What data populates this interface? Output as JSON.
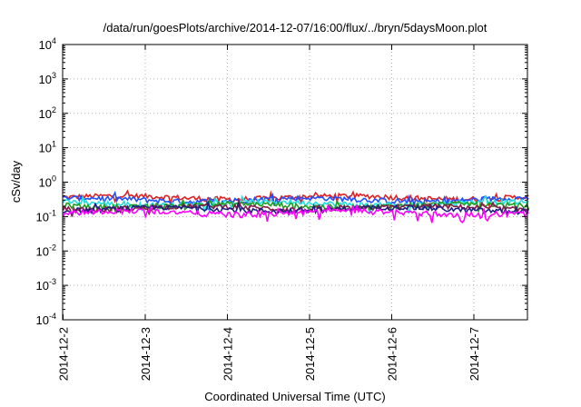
{
  "chart_data": {
    "type": "line",
    "title": "/data/run/goesPlots/archive/2014-12-07/16:00/flux/../bryn/5daysMoon.plot",
    "xlabel": "Coordinated Universal Time (UTC)",
    "ylabel": "cSv/day",
    "y_scale": "log",
    "ylim": [
      0.0001,
      10000
    ],
    "xlim": [
      "2014-12-02",
      "2014-12-07 16:00"
    ],
    "x_ticks": [
      "2014-12-2",
      "2014-12-3",
      "2014-12-4",
      "2014-12-5",
      "2014-12-6",
      "2014-12-7"
    ],
    "y_ticks": [
      {
        "base": "10",
        "exp": "-4"
      },
      {
        "base": "10",
        "exp": "-3"
      },
      {
        "base": "10",
        "exp": "-2"
      },
      {
        "base": "10",
        "exp": "-1"
      },
      {
        "base": "10",
        "exp": "0"
      },
      {
        "base": "10",
        "exp": "1"
      },
      {
        "base": "10",
        "exp": "2"
      },
      {
        "base": "10",
        "exp": "3"
      },
      {
        "base": "10",
        "exp": "4"
      }
    ],
    "grid": true,
    "legend": "none",
    "series": [
      {
        "color": "#e02020",
        "level": 0.36
      },
      {
        "color": "#2050ff",
        "level": 0.31
      },
      {
        "color": "#20e0e0",
        "level": 0.24
      },
      {
        "color": "#20a020",
        "level": 0.21
      },
      {
        "color": "#8a1a4a",
        "level": 0.18
      },
      {
        "color": "#202080",
        "level": 0.165
      },
      {
        "color": "#ff00ff",
        "level": 0.13
      }
    ]
  }
}
